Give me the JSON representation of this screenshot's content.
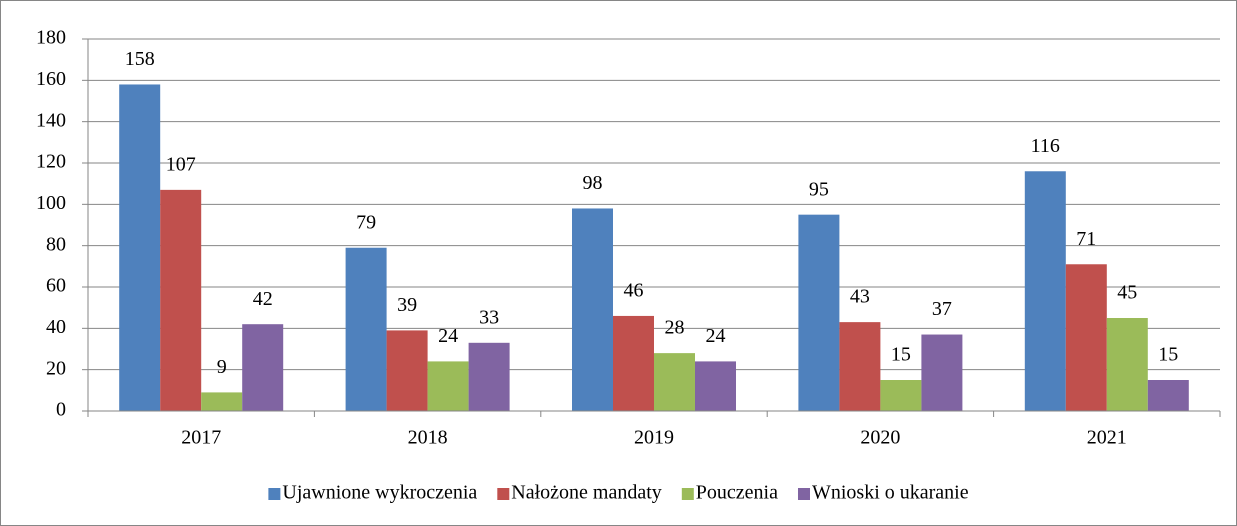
{
  "chart_data": {
    "type": "bar",
    "categories": [
      "2017",
      "2018",
      "2019",
      "2020",
      "2021"
    ],
    "series": [
      {
        "name": "Ujawnione wykroczenia",
        "color": "#4f81bd",
        "values": [
          158,
          79,
          98,
          95,
          116
        ]
      },
      {
        "name": "Nałożone mandaty",
        "color": "#c0504d",
        "values": [
          107,
          39,
          46,
          43,
          71
        ]
      },
      {
        "name": "Pouczenia",
        "color": "#9bbb59",
        "values": [
          9,
          24,
          28,
          15,
          45
        ]
      },
      {
        "name": "Wnioski o ukaranie",
        "color": "#8064a2",
        "values": [
          42,
          33,
          24,
          37,
          15
        ]
      }
    ],
    "ylim": [
      0,
      180
    ],
    "yticks": [
      0,
      20,
      40,
      60,
      80,
      100,
      120,
      140,
      160,
      180
    ],
    "grid": true,
    "legend": "bottom"
  }
}
